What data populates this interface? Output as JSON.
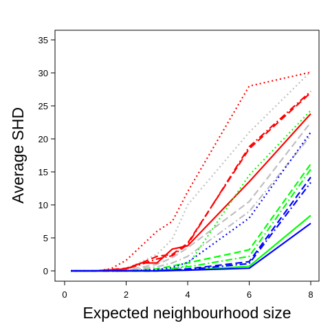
{
  "chart_data": {
    "type": "line",
    "title": "",
    "xlabel": "Expected neighbourhood size",
    "ylabel": "Average SHD",
    "xlim": [
      0,
      8
    ],
    "ylim": [
      0,
      35
    ],
    "x_ticks": [
      0,
      2,
      4,
      6,
      8
    ],
    "y_ticks": [
      0,
      5,
      10,
      15,
      20,
      25,
      30,
      35
    ],
    "grid": false,
    "legend": "none",
    "series": [
      {
        "color": "#bebebe",
        "dash": "dotted",
        "x": [
          0.2,
          1,
          2,
          3,
          3.5,
          4,
          6,
          8
        ],
        "y": [
          0,
          0,
          0.3,
          2.5,
          4.8,
          10,
          21,
          30.2
        ]
      },
      {
        "color": "#bebebe",
        "dash": "longdash",
        "x": [
          0.2,
          1,
          2,
          3,
          3.5,
          4,
          6,
          8
        ],
        "y": [
          0,
          0,
          0.1,
          1,
          2,
          3.5,
          10.5,
          22.5
        ]
      },
      {
        "color": "#bebebe",
        "dash": "dotdash",
        "x": [
          0.2,
          1,
          2,
          3,
          3.5,
          4,
          6,
          8
        ],
        "y": [
          0,
          0,
          0.1,
          0.6,
          1.2,
          2.2,
          9,
          20.5
        ]
      },
      {
        "color": "#ff0000",
        "dash": "dotted",
        "x": [
          0.2,
          1,
          1.5,
          2,
          2.5,
          3,
          3.5,
          4,
          6,
          8
        ],
        "y": [
          0,
          0,
          0.3,
          1.6,
          3.8,
          6,
          7.5,
          12,
          28,
          30.1
        ]
      },
      {
        "color": "#ff0000",
        "dash": "longdash",
        "x": [
          0.2,
          1,
          2,
          2.5,
          3,
          3.5,
          4,
          6,
          8
        ],
        "y": [
          0,
          0,
          0.4,
          1.2,
          2.2,
          2.5,
          4.2,
          18.5,
          27
        ]
      },
      {
        "color": "#ff0000",
        "dash": "dotdash",
        "x": [
          0.2,
          1,
          2,
          2.5,
          3,
          3.5,
          4,
          6,
          8
        ],
        "y": [
          0,
          0,
          0.3,
          1,
          1.8,
          2.3,
          4,
          18.8,
          27.2
        ]
      },
      {
        "color": "#ff0000",
        "dash": "solid",
        "x": [
          0.2,
          1,
          2,
          2.5,
          3,
          3.5,
          4,
          6,
          8
        ],
        "y": [
          0,
          0,
          0.3,
          1.2,
          1.2,
          3.3,
          3.8,
          13.5,
          23.8
        ]
      },
      {
        "color": "#00ff00",
        "dash": "dotted",
        "x": [
          0.2,
          1,
          2,
          3,
          3.5,
          4,
          6,
          8
        ],
        "y": [
          0,
          0,
          0,
          0.1,
          0.3,
          0.8,
          14.5,
          24.3
        ]
      },
      {
        "color": "#00ff00",
        "dash": "longdash",
        "x": [
          0.2,
          1,
          2,
          3,
          4,
          6,
          8
        ],
        "y": [
          0,
          0,
          0,
          0.3,
          1.2,
          3.2,
          16.2
        ]
      },
      {
        "color": "#00ff00",
        "dash": "dotdash",
        "x": [
          0.2,
          1,
          2,
          3,
          4,
          6,
          8
        ],
        "y": [
          0,
          0,
          0,
          0.1,
          0.6,
          2.2,
          15.4
        ]
      },
      {
        "color": "#00ff00",
        "dash": "solid",
        "x": [
          0.2,
          1,
          2,
          3,
          4,
          6,
          8
        ],
        "y": [
          0,
          0,
          0,
          0,
          0.1,
          0.7,
          8.4
        ]
      },
      {
        "color": "#0000ff",
        "dash": "dotted",
        "x": [
          0.2,
          1,
          2,
          3,
          3.5,
          4,
          6,
          8
        ],
        "y": [
          0,
          0,
          0,
          0.2,
          0.5,
          1.3,
          8,
          21
        ]
      },
      {
        "color": "#0000ff",
        "dash": "longdash",
        "x": [
          0.2,
          1,
          2,
          3,
          4,
          6,
          8
        ],
        "y": [
          0,
          0,
          0,
          0,
          0.3,
          1.4,
          14.2
        ]
      },
      {
        "color": "#0000ff",
        "dash": "dotdash",
        "x": [
          0.2,
          1,
          2,
          3,
          4,
          6,
          8
        ],
        "y": [
          0,
          0,
          0,
          0,
          0.2,
          1.1,
          13.4
        ]
      },
      {
        "color": "#0000ff",
        "dash": "solid",
        "x": [
          0.2,
          1,
          2,
          3,
          4,
          6,
          8
        ],
        "y": [
          0,
          0,
          0,
          0,
          0.1,
          0.4,
          7.2
        ]
      }
    ]
  }
}
